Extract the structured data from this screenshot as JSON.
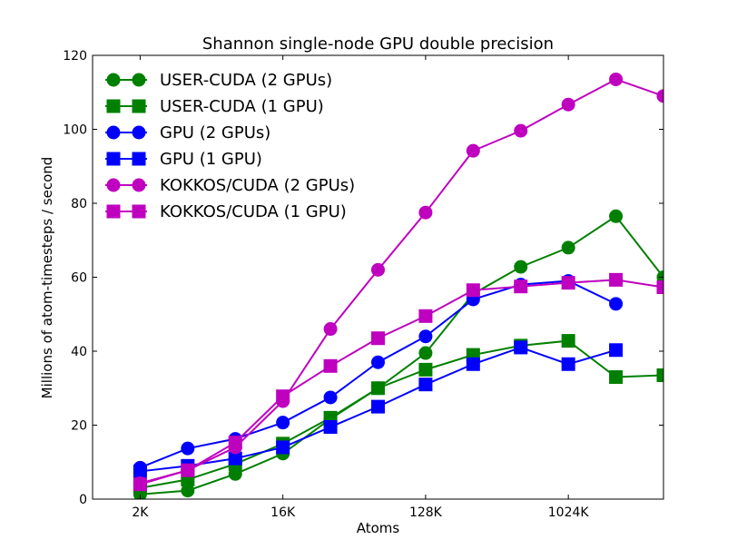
{
  "chart_data": {
    "type": "line",
    "title": "Shannon single-node GPU double precision",
    "xlabel": "Atoms",
    "ylabel": "Millions of atom-timesteps / second",
    "x_scale": "log2",
    "x": [
      2048,
      4096,
      8192,
      16384,
      32768,
      65536,
      131072,
      262144,
      524288,
      1048576,
      2097152,
      4194304
    ],
    "xlim": [
      1024,
      4194304
    ],
    "ylim": [
      0,
      120
    ],
    "x_ticks": [
      {
        "value": 2048,
        "label": "2K"
      },
      {
        "value": 16384,
        "label": "16K"
      },
      {
        "value": 131072,
        "label": "128K"
      },
      {
        "value": 1048576,
        "label": "1024K"
      }
    ],
    "y_ticks": [
      0,
      20,
      40,
      60,
      80,
      100,
      120
    ],
    "grid": false,
    "legend_position": "top-left",
    "series": [
      {
        "name": "USER-CUDA (2 GPUs)",
        "color": "#008000",
        "marker": "circle",
        "values": [
          1.3,
          2.3,
          6.8,
          12.3,
          21.7,
          30.0,
          39.5,
          55.5,
          62.8,
          68.0,
          76.5,
          60.0
        ]
      },
      {
        "name": "USER-CUDA (1 GPU)",
        "color": "#008000",
        "marker": "square",
        "values": [
          3.0,
          5.3,
          9.5,
          15.0,
          22.0,
          30.0,
          35.0,
          39.0,
          41.5,
          42.8,
          33.0,
          33.5
        ]
      },
      {
        "name": "GPU (2 GPUs)",
        "color": "#0000ff",
        "marker": "circle",
        "values": [
          8.5,
          13.7,
          16.3,
          20.7,
          27.5,
          37.0,
          44.0,
          54.0,
          58.0,
          59.0,
          52.8,
          null
        ]
      },
      {
        "name": "GPU (1 GPU)",
        "color": "#0000ff",
        "marker": "square",
        "values": [
          7.5,
          9.0,
          11.0,
          14.0,
          19.5,
          25.0,
          31.0,
          36.5,
          41.0,
          36.5,
          40.3,
          null
        ]
      },
      {
        "name": "KOKKOS/CUDA (2 GPUs)",
        "color": "#bf00bf",
        "marker": "circle",
        "values": [
          4.3,
          7.8,
          14.0,
          26.5,
          46.0,
          62.0,
          77.5,
          94.2,
          99.6,
          106.7,
          113.5,
          109.0
        ]
      },
      {
        "name": "KOKKOS/CUDA (1 GPU)",
        "color": "#bf00bf",
        "marker": "square",
        "values": [
          4.0,
          7.8,
          15.3,
          27.8,
          36.0,
          43.5,
          49.5,
          56.5,
          57.5,
          58.5,
          59.3,
          57.3
        ]
      }
    ]
  }
}
